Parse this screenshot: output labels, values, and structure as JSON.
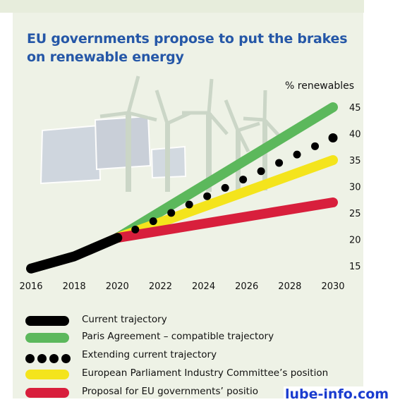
{
  "chart_data": {
    "type": "line",
    "title": "EU governments propose to put the brakes on renewable energy",
    "title_lines": [
      "EU governments propose to put the brakes",
      "on renewable energy"
    ],
    "ylabel": "% renewables",
    "xlim": [
      2016,
      2030
    ],
    "ylim": [
      15,
      45
    ],
    "x_ticks": [
      2016,
      2018,
      2020,
      2022,
      2024,
      2026,
      2028,
      2030
    ],
    "y_ticks": [
      15,
      20,
      25,
      30,
      35,
      40,
      45
    ],
    "grid": false,
    "y_axis_position": "right",
    "legend_placement": "bottom",
    "series": [
      {
        "name": "Current trajectory",
        "style": "solid",
        "color": "#000000",
        "x": [
          2016,
          2018,
          2020
        ],
        "y": [
          14.5,
          16.8,
          20.3
        ]
      },
      {
        "name": "Paris Agreement – compatible trajectory",
        "style": "solid",
        "color": "#5cb85c",
        "x": [
          2020,
          2030
        ],
        "y": [
          20.3,
          45
        ]
      },
      {
        "name": "Extending current trajectory",
        "style": "dots",
        "color": "#000000",
        "x": [
          2020,
          2030
        ],
        "y": [
          20.3,
          39.2
        ]
      },
      {
        "name": "European Parliament Industry Committee’s position",
        "style": "solid",
        "color": "#f4e41c",
        "x": [
          2020,
          2030
        ],
        "y": [
          20.3,
          35
        ]
      },
      {
        "name": "Proposal for EU governments’ positio",
        "style": "solid",
        "color": "#d81f3c",
        "x": [
          2020,
          2030
        ],
        "y": [
          20.3,
          27
        ]
      }
    ]
  },
  "watermark": "lube-info.com"
}
